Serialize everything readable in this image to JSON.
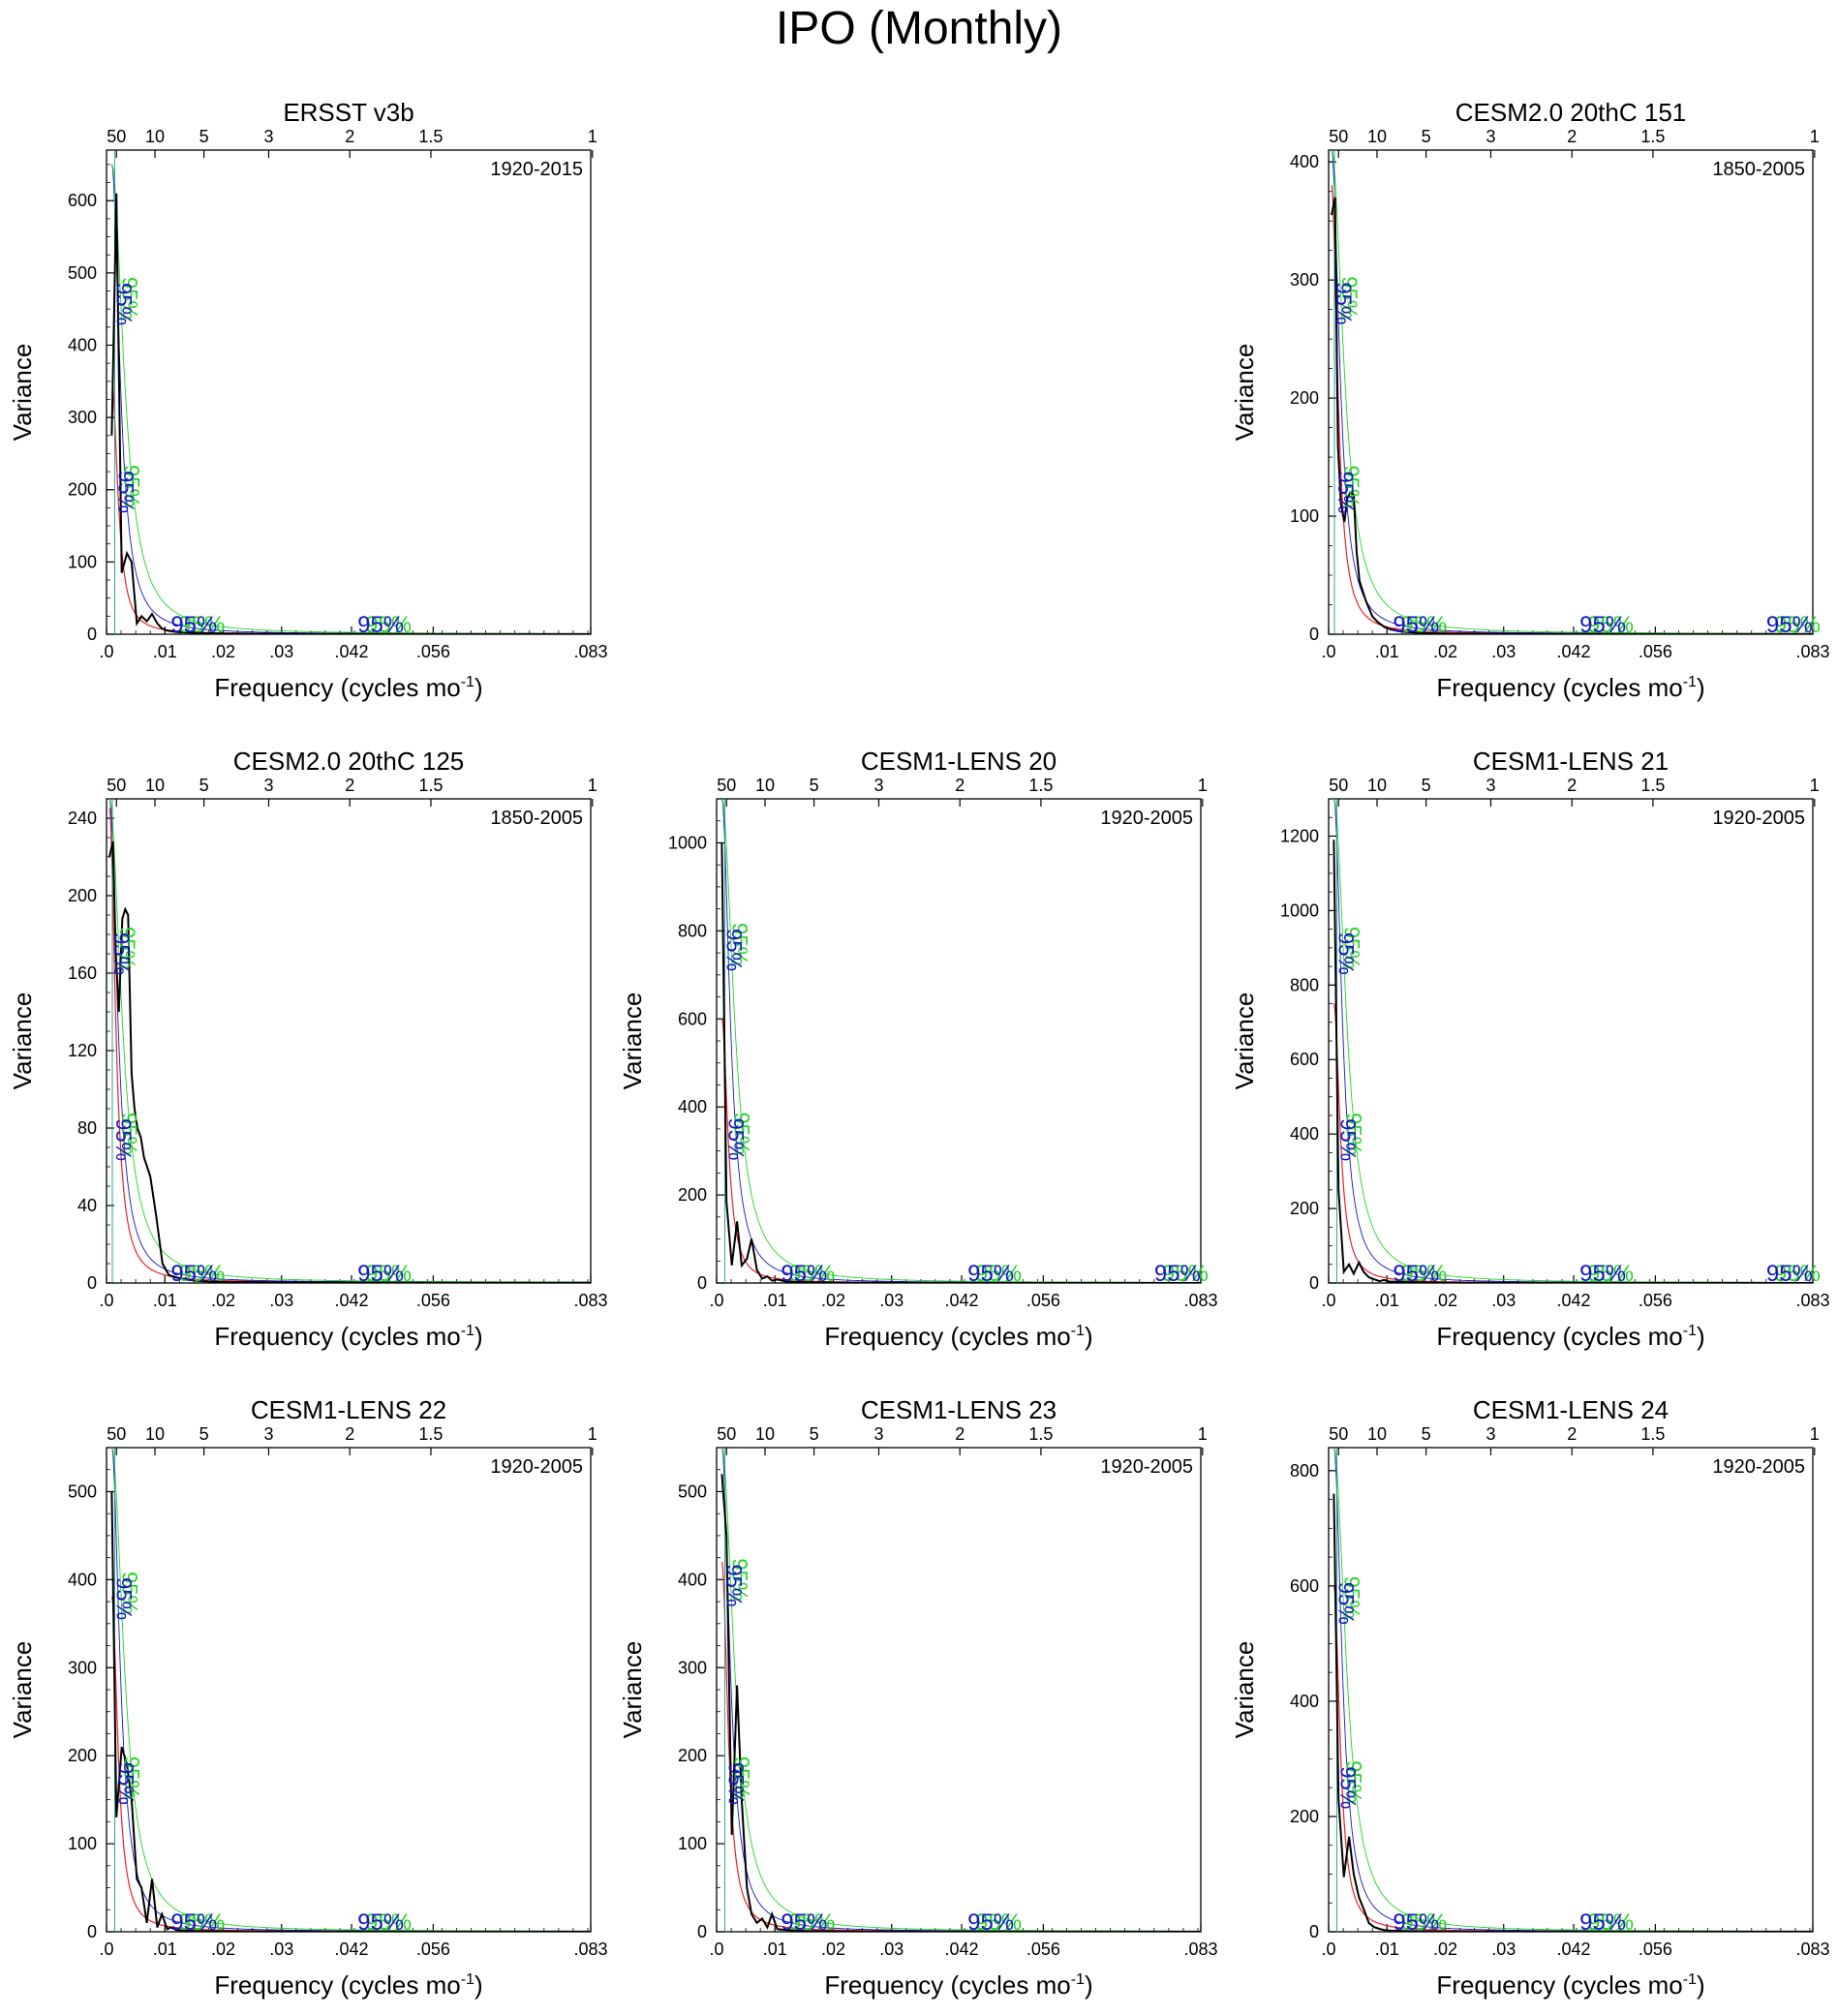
{
  "title": "IPO (Monthly)",
  "axis_common": {
    "xlabel": "Frequency (cycles mo",
    "xlabel_sup": "-1",
    "xlabel_close": ")",
    "ylabel": "Variance",
    "xlim": [
      0,
      0.083
    ],
    "bottom_ticks": [
      {
        "v": 0,
        "label": ".0"
      },
      {
        "v": 0.01,
        "label": ".01"
      },
      {
        "v": 0.02,
        "label": ".02"
      },
      {
        "v": 0.03,
        "label": ".03"
      },
      {
        "v": 0.042,
        "label": ".042"
      },
      {
        "v": 0.056,
        "label": ".056"
      },
      {
        "v": 0.083,
        "label": ".083"
      }
    ],
    "top_ticks": [
      {
        "v": 0.0017,
        "label": "50"
      },
      {
        "v": 0.0083,
        "label": "10"
      },
      {
        "v": 0.0167,
        "label": "5"
      },
      {
        "v": 0.0278,
        "label": "3"
      },
      {
        "v": 0.0417,
        "label": "2"
      },
      {
        "v": 0.0556,
        "label": "1.5"
      },
      {
        "v": 0.0833,
        "label": "1"
      }
    ],
    "ci_label": "95%",
    "colors": {
      "spectrum": "#000000",
      "red_noise": "#e8222a",
      "ci_blue": "#1515c8",
      "ci_green": "#24d424",
      "ci_teal": "#1a9a8c"
    }
  },
  "chart_data": [
    {
      "id": "ersst",
      "type": "line",
      "title": "ERSST v3b",
      "period": "1920-2015",
      "ylim": [
        0,
        670
      ],
      "yticks": [
        0,
        100,
        200,
        300,
        400,
        500,
        600
      ],
      "x": [
        0.0009,
        0.0017,
        0.0026,
        0.0035,
        0.0043,
        0.0052,
        0.006,
        0.0069,
        0.0078,
        0.0087,
        0.0095,
        0.0104,
        0.012,
        0.015,
        0.02,
        0.03,
        0.045,
        0.06,
        0.083
      ],
      "values": [
        275,
        610,
        85,
        112,
        100,
        15,
        25,
        18,
        28,
        15,
        8,
        5,
        3,
        2,
        1,
        0.5,
        0.3,
        0.2,
        0.1
      ],
      "red_at_first": 350,
      "ci_at_first": 650,
      "ci_labels_y": [
        465,
        205,
        8,
        3
      ]
    },
    {
      "id": "cesm2-151",
      "type": "line",
      "title": "CESM2.0 20thC 151",
      "period": "1850-2005",
      "ylim": [
        0,
        410
      ],
      "yticks": [
        0,
        100,
        200,
        300,
        400
      ],
      "x": [
        0.0005,
        0.0011,
        0.0016,
        0.0021,
        0.0027,
        0.0032,
        0.0037,
        0.0043,
        0.0048,
        0.0053,
        0.0064,
        0.0075,
        0.0085,
        0.0096,
        0.0107,
        0.013,
        0.016,
        0.02,
        0.03,
        0.045,
        0.06,
        0.083
      ],
      "values": [
        355,
        370,
        160,
        110,
        95,
        115,
        120,
        118,
        70,
        45,
        28,
        15,
        10,
        6,
        4,
        2,
        1,
        0.5,
        0.3,
        0.2,
        0.1,
        0.1
      ],
      "red_at_first": 380,
      "ci_at_first": 410,
      "ci_labels_y": [
        285,
        125,
        3,
        0,
        0
      ]
    },
    {
      "id": "cesm2-125",
      "type": "line",
      "title": "CESM2.0 20thC 125",
      "period": "1850-2005",
      "ylim": [
        0,
        250
      ],
      "yticks": [
        0,
        40,
        80,
        120,
        160,
        200,
        240
      ],
      "x": [
        0.0005,
        0.0011,
        0.0016,
        0.0021,
        0.0027,
        0.0032,
        0.0037,
        0.0043,
        0.0048,
        0.0053,
        0.0059,
        0.0064,
        0.0075,
        0.0085,
        0.0096,
        0.0107,
        0.013,
        0.016,
        0.02,
        0.03,
        0.045,
        0.06,
        0.083
      ],
      "values": [
        220,
        228,
        170,
        140,
        188,
        193,
        190,
        108,
        90,
        80,
        75,
        65,
        55,
        35,
        10,
        4,
        2,
        1,
        0.5,
        0.3,
        0.2,
        0.1,
        0.1
      ],
      "red_at_first": 245,
      "ci_at_first": 250,
      "ci_labels_y": [
        173,
        77,
        4,
        0
      ]
    },
    {
      "id": "lens-20",
      "type": "line",
      "title": "CESM1-LENS 20",
      "period": "1920-2005",
      "ylim": [
        0,
        1100
      ],
      "yticks": [
        0,
        200,
        400,
        600,
        800,
        1000
      ],
      "x": [
        0.0009,
        0.0017,
        0.0026,
        0.0035,
        0.0043,
        0.0052,
        0.006,
        0.0069,
        0.0078,
        0.0087,
        0.0095,
        0.0104,
        0.012,
        0.015,
        0.02,
        0.03,
        0.045,
        0.06,
        0.083
      ],
      "values": [
        1000,
        185,
        40,
        140,
        40,
        55,
        100,
        30,
        10,
        15,
        5,
        8,
        3,
        2,
        1,
        0.5,
        0.3,
        0.2,
        0.1
      ],
      "red_at_first": 600,
      "ci_at_first": 1100,
      "ci_labels_y": [
        770,
        340,
        8,
        3,
        0
      ]
    },
    {
      "id": "lens-21",
      "type": "line",
      "title": "CESM1-LENS 21",
      "period": "1920-2005",
      "ylim": [
        0,
        1300
      ],
      "yticks": [
        0,
        200,
        400,
        600,
        800,
        1000,
        1200
      ],
      "x": [
        0.0009,
        0.0017,
        0.0026,
        0.0035,
        0.0043,
        0.0052,
        0.006,
        0.0069,
        0.0078,
        0.0087,
        0.0095,
        0.0104,
        0.012,
        0.015,
        0.02,
        0.03,
        0.045,
        0.06,
        0.083
      ],
      "values": [
        1190,
        250,
        30,
        50,
        25,
        55,
        30,
        15,
        10,
        5,
        8,
        4,
        3,
        2,
        1,
        0.5,
        0.3,
        0.2,
        0.1
      ],
      "red_at_first": 750,
      "ci_at_first": 1300,
      "ci_labels_y": [
        900,
        400,
        8,
        3,
        0
      ]
    },
    {
      "id": "lens-22",
      "type": "line",
      "title": "CESM1-LENS 22",
      "period": "1920-2005",
      "ylim": [
        0,
        550
      ],
      "yticks": [
        0,
        100,
        200,
        300,
        400,
        500
      ],
      "x": [
        0.0009,
        0.0017,
        0.0026,
        0.0035,
        0.0043,
        0.0052,
        0.006,
        0.0069,
        0.0078,
        0.0087,
        0.0095,
        0.0104,
        0.011,
        0.012,
        0.015,
        0.02,
        0.03,
        0.045,
        0.06,
        0.083
      ],
      "values": [
        500,
        130,
        210,
        190,
        150,
        60,
        50,
        10,
        60,
        5,
        20,
        3,
        5,
        2,
        1,
        0.5,
        0.3,
        0.2,
        0.1,
        0.1
      ],
      "red_at_first": 380,
      "ci_at_first": 550,
      "ci_labels_y": [
        385,
        175,
        8,
        3
      ]
    },
    {
      "id": "lens-23",
      "type": "line",
      "title": "CESM1-LENS 23",
      "period": "1920-2005",
      "ylim": [
        0,
        550
      ],
      "yticks": [
        0,
        100,
        200,
        300,
        400,
        500
      ],
      "x": [
        0.0009,
        0.0017,
        0.0026,
        0.0035,
        0.0043,
        0.0052,
        0.006,
        0.0069,
        0.0078,
        0.0087,
        0.0095,
        0.0104,
        0.012,
        0.015,
        0.02,
        0.03,
        0.045,
        0.06,
        0.083
      ],
      "values": [
        520,
        450,
        110,
        280,
        150,
        50,
        20,
        10,
        15,
        5,
        20,
        3,
        2,
        1,
        0.5,
        0.3,
        0.2,
        0.1,
        0.1
      ],
      "red_at_first": 420,
      "ci_at_first": 550,
      "ci_labels_y": [
        400,
        175,
        8,
        3
      ]
    },
    {
      "id": "lens-24",
      "type": "line",
      "title": "CESM1-LENS 24",
      "period": "1920-2005",
      "ylim": [
        0,
        840
      ],
      "yticks": [
        0,
        200,
        400,
        600,
        800
      ],
      "x": [
        0.0009,
        0.0017,
        0.0026,
        0.0035,
        0.0043,
        0.0052,
        0.006,
        0.0069,
        0.0078,
        0.0087,
        0.0095,
        0.0104,
        0.012,
        0.015,
        0.02,
        0.03,
        0.045,
        0.06,
        0.083
      ],
      "values": [
        760,
        230,
        95,
        165,
        100,
        60,
        40,
        15,
        8,
        5,
        3,
        2,
        1.5,
        1,
        0.5,
        0.3,
        0.2,
        0.1,
        0.1
      ],
      "red_at_first": 600,
      "ci_at_first": 840,
      "ci_labels_y": [
        580,
        260,
        8,
        3
      ]
    }
  ]
}
